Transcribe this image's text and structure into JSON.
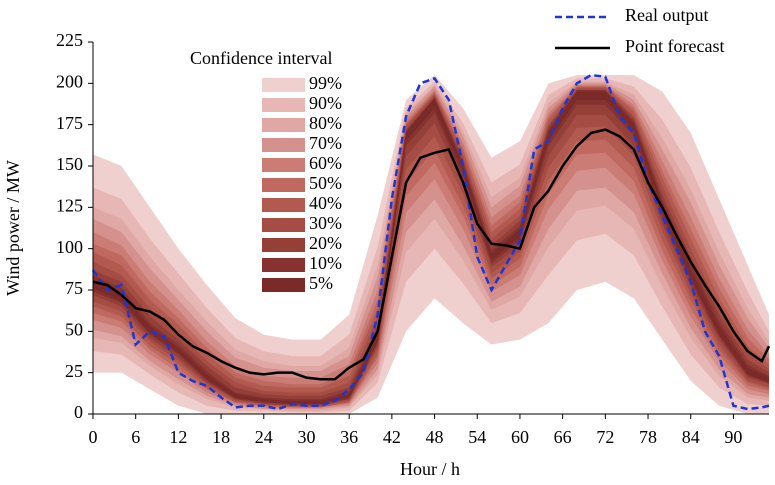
{
  "chart_data": {
    "type": "fan",
    "xlabel": "Hour / h",
    "ylabel": "Wind power  / MW",
    "xlim": [
      0,
      95
    ],
    "xticks": [
      0,
      6,
      12,
      18,
      24,
      30,
      36,
      42,
      48,
      54,
      60,
      66,
      72,
      78,
      84,
      90
    ],
    "ylim": [
      0,
      225
    ],
    "yticks": [
      0,
      25,
      50,
      75,
      100,
      125,
      150,
      175,
      200,
      225
    ],
    "x": [
      0,
      2,
      4,
      6,
      8,
      10,
      12,
      14,
      16,
      18,
      20,
      22,
      24,
      26,
      28,
      30,
      32,
      34,
      36,
      38,
      40,
      42,
      44,
      46,
      48,
      50,
      52,
      54,
      56,
      58,
      60,
      62,
      64,
      66,
      68,
      70,
      72,
      74,
      76,
      78,
      80,
      82,
      84,
      86,
      88,
      90,
      92,
      94,
      95
    ],
    "series": [
      {
        "name": "Real output",
        "color": "#1f35d6",
        "dash": true,
        "values": [
          87,
          75,
          78,
          42,
          50,
          47,
          25,
          20,
          17,
          10,
          4,
          5,
          5,
          3,
          6,
          5,
          5,
          8,
          15,
          25,
          60,
          130,
          180,
          200,
          203,
          190,
          150,
          95,
          75,
          90,
          105,
          160,
          165,
          185,
          200,
          205,
          204,
          180,
          170,
          140,
          120,
          100,
          80,
          50,
          35,
          5,
          3,
          4,
          5
        ]
      },
      {
        "name": "Point forecast",
        "color": "#000000",
        "dash": false,
        "values": [
          80,
          78,
          72,
          64,
          62,
          57,
          48,
          41,
          37,
          32,
          28,
          25,
          24,
          25,
          25,
          22,
          21,
          21,
          28,
          33,
          50,
          95,
          140,
          155,
          158,
          160,
          140,
          115,
          103,
          102,
          100,
          125,
          135,
          150,
          162,
          170,
          172,
          168,
          160,
          140,
          125,
          108,
          92,
          78,
          65,
          50,
          38,
          32,
          41
        ]
      }
    ],
    "bands": {
      "title": "Confidence interval",
      "x": [
        0,
        4,
        8,
        12,
        16,
        20,
        24,
        28,
        32,
        36,
        40,
        44,
        48,
        52,
        56,
        60,
        64,
        68,
        72,
        76,
        80,
        84,
        88,
        92,
        95
      ],
      "intervals": [
        {
          "name": "99%",
          "color": "#f0cfcf",
          "upper": [
            157,
            150,
            125,
            100,
            78,
            58,
            48,
            45,
            45,
            60,
            120,
            190,
            205,
            185,
            155,
            165,
            200,
            205,
            205,
            205,
            195,
            170,
            130,
            90,
            60
          ],
          "lower": [
            25,
            25,
            15,
            5,
            0,
            0,
            0,
            0,
            0,
            0,
            10,
            50,
            70,
            55,
            42,
            45,
            55,
            75,
            80,
            70,
            45,
            20,
            5,
            0,
            0
          ]
        },
        {
          "name": "90%",
          "color": "#e7b7b5",
          "upper": [
            137,
            130,
            106,
            85,
            64,
            46,
            38,
            35,
            35,
            48,
            101,
            185,
            201,
            176,
            140,
            151,
            193,
            203,
            203,
            198,
            178,
            149,
            110,
            74,
            50
          ],
          "lower": [
            38,
            36,
            24,
            13,
            5,
            2,
            2,
            1,
            1,
            2,
            19,
            80,
            100,
            79,
            55,
            61,
            84,
            105,
            109,
            96,
            65,
            36,
            16,
            6,
            5
          ]
        },
        {
          "name": "80%",
          "color": "#dfa8a5",
          "upper": [
            125,
            118,
            95,
            75,
            56,
            39,
            32,
            29,
            29,
            40,
            90,
            182,
            199,
            171,
            131,
            143,
            188,
            201,
            201,
            193,
            167,
            136,
            98,
            64,
            44
          ],
          "lower": [
            46,
            43,
            29,
            18,
            9,
            4,
            3,
            2,
            2,
            4,
            24,
            98,
            118,
            93,
            63,
            71,
            101,
            123,
            126,
            112,
            77,
            46,
            23,
            10,
            8
          ]
        },
        {
          "name": "70%",
          "color": "#d4918d",
          "upper": [
            118,
            110,
            88,
            69,
            50,
            34,
            28,
            26,
            26,
            35,
            83,
            180,
            198,
            168,
            125,
            138,
            185,
            200,
            200,
            190,
            160,
            128,
            90,
            58,
            40
          ],
          "lower": [
            51,
            47,
            32,
            21,
            11,
            5,
            3,
            3,
            3,
            5,
            27,
            110,
            130,
            102,
            68,
            77,
            112,
            135,
            137,
            122,
            85,
            52,
            27,
            12,
            10
          ]
        },
        {
          "name": "60%",
          "color": "#ca7c75",
          "upper": [
            110,
            102,
            80,
            63,
            44,
            29,
            23,
            22,
            22,
            30,
            75,
            178,
            196,
            164,
            119,
            132,
            182,
            199,
            199,
            187,
            153,
            119,
            82,
            51,
            36
          ],
          "lower": [
            57,
            52,
            36,
            25,
            13,
            6,
            4,
            4,
            4,
            6,
            31,
            122,
            142,
            112,
            74,
            84,
            124,
            147,
            149,
            133,
            93,
            59,
            32,
            15,
            12
          ]
        },
        {
          "name": "50%",
          "color": "#c06960",
          "upper": [
            103,
            96,
            74,
            58,
            40,
            25,
            20,
            18,
            18,
            26,
            69,
            176,
            195,
            161,
            114,
            128,
            180,
            198,
            198,
            185,
            147,
            112,
            76,
            46,
            33
          ],
          "lower": [
            61,
            56,
            39,
            27,
            15,
            7,
            5,
            4,
            4,
            7,
            34,
            132,
            152,
            120,
            78,
            89,
            133,
            157,
            158,
            141,
            99,
            64,
            36,
            17,
            14
          ]
        },
        {
          "name": "40%",
          "color": "#b25a50",
          "upper": [
            98,
            90,
            69,
            54,
            36,
            22,
            17,
            16,
            16,
            23,
            64,
            175,
            194,
            159,
            110,
            124,
            178,
            198,
            198,
            183,
            143,
            106,
            70,
            41,
            30
          ],
          "lower": [
            65,
            59,
            41,
            30,
            16,
            7,
            5,
            4,
            4,
            7,
            36,
            140,
            160,
            126,
            82,
            94,
            141,
            165,
            166,
            149,
            105,
            69,
            39,
            19,
            15
          ]
        },
        {
          "name": "30%",
          "color": "#a54c44",
          "upper": [
            92,
            84,
            64,
            49,
            32,
            19,
            14,
            13,
            13,
            19,
            59,
            174,
            193,
            156,
            106,
            120,
            175,
            197,
            197,
            180,
            138,
            100,
            64,
            37,
            27
          ],
          "lower": [
            68,
            62,
            44,
            32,
            18,
            8,
            6,
            5,
            5,
            8,
            39,
            148,
            168,
            133,
            85,
            98,
            149,
            173,
            174,
            156,
            111,
            73,
            42,
            20,
            16
          ]
        },
        {
          "name": "20%",
          "color": "#953f39",
          "upper": [
            87,
            80,
            59,
            45,
            29,
            16,
            12,
            11,
            11,
            16,
            54,
            172,
            192,
            154,
            102,
            117,
            174,
            196,
            196,
            179,
            133,
            95,
            60,
            33,
            25
          ],
          "lower": [
            72,
            65,
            46,
            34,
            19,
            9,
            6,
            5,
            5,
            9,
            41,
            156,
            176,
            139,
            89,
            102,
            156,
            181,
            181,
            162,
            115,
            77,
            45,
            22,
            18
          ]
        },
        {
          "name": "10%",
          "color": "#86332f",
          "upper": [
            84,
            76,
            55,
            42,
            26,
            13,
            10,
            9,
            9,
            14,
            50,
            171,
            191,
            152,
            99,
            114,
            172,
            196,
            196,
            177,
            130,
            91,
            56,
            30,
            23
          ],
          "lower": [
            74,
            67,
            48,
            36,
            20,
            9,
            7,
            6,
            6,
            9,
            43,
            162,
            182,
            143,
            91,
            105,
            162,
            187,
            187,
            168,
            119,
            80,
            47,
            23,
            19
          ]
        },
        {
          "name": "5%",
          "color": "#7a2a28",
          "upper": [
            81,
            73,
            53,
            40,
            24,
            12,
            9,
            8,
            8,
            12,
            48,
            171,
            191,
            151,
            97,
            112,
            171,
            195,
            195,
            176,
            128,
            88,
            53,
            28,
            22
          ],
          "lower": [
            76,
            68,
            49,
            37,
            21,
            10,
            7,
            6,
            6,
            10,
            44,
            165,
            185,
            146,
            93,
            107,
            165,
            190,
            190,
            171,
            122,
            82,
            48,
            24,
            19
          ]
        }
      ]
    }
  }
}
